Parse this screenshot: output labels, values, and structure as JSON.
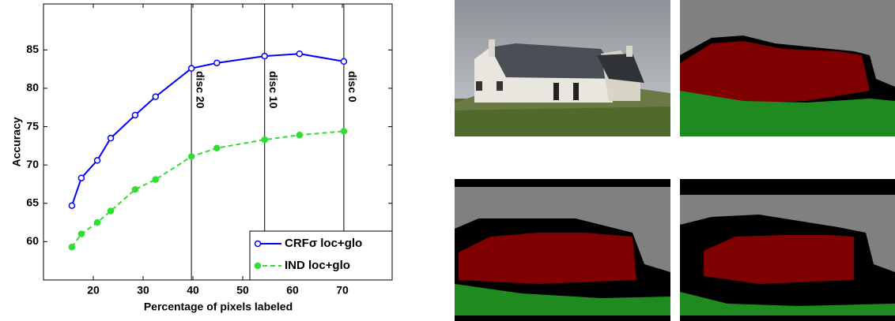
{
  "chart_data": {
    "type": "line",
    "xlabel": "Percentage of pixels labeled",
    "ylabel": "Accuracy",
    "xlim": [
      10,
      80
    ],
    "xticks": [
      20,
      30,
      40,
      50,
      60,
      70
    ],
    "ylim": [
      55,
      91
    ],
    "yticks": [
      60,
      65,
      70,
      75,
      80,
      85
    ],
    "x": [
      15.7,
      17.6,
      20.8,
      23.5,
      28.4,
      32.5,
      39.7,
      44.8,
      54.4,
      61.4,
      70.3
    ],
    "series": [
      {
        "name": "CRFσ loc+glo",
        "color": "#0000ff",
        "dashed": false,
        "values": [
          64.7,
          68.3,
          70.6,
          73.5,
          76.5,
          78.9,
          82.6,
          83.3,
          84.2,
          84.5,
          83.5
        ]
      },
      {
        "name": "IND loc+glo",
        "color": "#33dd33",
        "dashed": true,
        "values": [
          59.3,
          61.0,
          62.5,
          64.0,
          66.8,
          68.1,
          71.1,
          72.2,
          73.3,
          73.9,
          74.4
        ]
      }
    ],
    "annotations": [
      {
        "x": 39.7,
        "label": "disc 20"
      },
      {
        "x": 54.4,
        "label": "disc 10"
      },
      {
        "x": 70.3,
        "label": "disc 0"
      }
    ],
    "legend": "lower right"
  }
}
